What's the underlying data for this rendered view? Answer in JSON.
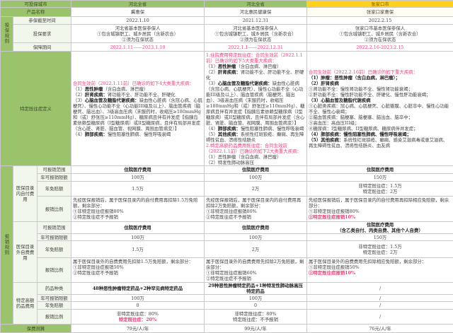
{
  "header": {
    "city_label": "可投保城市",
    "cities": [
      "河北全省",
      "河北全省",
      "张家口市"
    ]
  },
  "product": {
    "label": "产品名称",
    "names": [
      "冀惠保",
      "河北惠民健康保",
      "张家口家惠保"
    ]
  },
  "rules": {
    "group": "投保规则",
    "deadline": {
      "label": "参保截至时间",
      "values": [
        "2022.1.10",
        "2021.12.31",
        "2022.2.15"
      ]
    },
    "requirement": {
      "label": "投保要求",
      "values": [
        [
          "河北省基本医保参保人",
          "①包含城镇职工、城乡居民（含新农合）",
          "②须为在保状态"
        ],
        [
          "河北省基本医保参保人",
          "①包含城镇职工、城乡居民（含新农合）",
          "②须为在保状态"
        ],
        [
          "张家口市基本医保参保人",
          "①包含城镇职工、城乡居民（含新农合）",
          "②须为在保状态"
        ]
      ]
    },
    "period": {
      "label": "保障期间",
      "values": [
        "2022.1.11——2023.1.10",
        "2022.1.1——2022.12.31",
        "2022.2.16-2023.2.15"
      ]
    }
  },
  "preexisting": {
    "label": "特定既往症定义",
    "col1": {
      "intro": "合同生效前（2022.1.11前）已确诊的如下4大类重大疾病：",
      "items": [
        {
          "n": "（1）",
          "t": "恶性肿瘤",
          "d": "（含白血病、淋巴瘤）"
        },
        {
          "n": "（2）",
          "t": "肝肾疾病：",
          "d": "肾功能不全、肝功能不全、肝硬化"
        },
        {
          "n": "（3）",
          "t": "心脑血管及糖脂代谢疾病：",
          "d": "缺血性心脏病（含冠心病、心肌梗死）、慢性心功能不全（心功能III级及以上）、脑血管疾病（脑梗死、脑出血）、3级高血压病（末服药时，收缩压≥180mmHg和（或）舒张压≥110mmHg）、糖尿病且伴有并发症【指胰岛素依赖型糖尿病（I型糖尿病）或II型糖尿病，且伴有局部并发症（含心脏、肾脏、脑血管、视网膜、周围血管病变）】"
        },
        {
          "n": "（4）",
          "t": "肺部疾病：",
          "d": "慢性阻塞性肺病、慢性呼吸衰竭"
        }
      ]
    },
    "col2": {
      "intro1": "1.住院费用特定既往症：合同生效前（2022.1.1前）已确诊的如下5大类重大疾病：",
      "items1": [
        {
          "n": "（1）",
          "t": "恶性肿瘤",
          "d": "（含白血病、淋巴瘤）"
        },
        {
          "n": "（2）",
          "t": "肝肾疾病：",
          "d": "肾功能不全、肝功能不全、肝硬化"
        },
        {
          "n": "（3）",
          "t": "心脑血管及糖脂代谢疾病：",
          "d": "缺血性心脏病（含冠心病、心肌梗死）、慢性心功能不全（心功能III级及以上）、脑血管疾病（脑梗死、脑出血）、3级高血压病（末服药时，收缩压≥180mmHg和（或）舒张压≥110mmHg）、糖尿病且伴有并发症【指胰岛素依赖型糖尿病（I型糖尿病）或II型糖尿病，且伴有局部并发症（含心脏、肾脏、脑血管、视网膜、周围血管病变）】"
        },
        {
          "n": "（4）",
          "t": "肺部疾病：",
          "d": "慢性阻塞性肺病、慢性呼吸衰竭"
        },
        {
          "n": "（5）",
          "t": "其他疾病：",
          "d": "系统性红斑狼疮、癫痫、再生障碍性贫血、溃疡性结肠炎"
        }
      ],
      "intro2": "2.特定高额药品费用既往症：合同生效前（2022.1.1前）已确诊的如下2大类重大疾病：",
      "items2": [
        "（1）恶性肿瘤（含白血病、淋巴瘤）",
        "（2）特发性肺动脉高压"
      ]
    },
    "col3": {
      "intro": "合同生效前（2022.2.16前）已确诊的如下重大疾病：",
      "items": [
        {
          "t": "（1）肿瘤：恶性肿瘤（含白血病，淋巴瘤）；",
          "bold": true
        },
        {
          "t": "（2）肝肾疾病",
          "bold": true
        },
        {
          "t": "①肾功能不全：慢性肾功能不全、慢性肾功能衰竭；",
          "bold": false
        },
        {
          "t": "②肝功能不全：慢性肝功能不全、肝硬化、慢性肝功能衰竭；",
          "bold": false
        },
        {
          "t": "（3）心脑血管及糖脂代谢疾病",
          "bold": true
        },
        {
          "t": "①心脏类疾病：冠心病、心肌梗死、心脏瓣膜、心脏卒中、慢性心功能不全、慢性心衰竭；",
          "bold": false
        },
        {
          "t": "②脑血管疾病：脑梗塞、脑梗塞、脑出血、脑卒中；",
          "bold": false
        },
        {
          "t": "③高血压：高血压III级；",
          "bold": false
        },
        {
          "t": "④糖尿病：I型糖尿病、II型糖尿病、糖尿病伴并发症；",
          "bold": false
        },
        {
          "t": "（4）肺部疾病：慢性阻塞性肺病、慢性呼吸衰竭；",
          "bold": true
        },
        {
          "t": "（5）其他疾病：",
          "bold": true,
          "d": "系统性红斑狼疮、癫痫、感染艾滋病毒或患艾滋病、再生障碍性贫血、溃疡性结肠炎、血友病"
        }
      ]
    }
  },
  "claims": {
    "group": "报销规则",
    "inside": {
      "label": "医保目录内自付费用",
      "scope": {
        "label": "可报销范围",
        "values": [
          "住院医疗费用",
          "住院医疗费用",
          "住院医疗费用"
        ]
      },
      "limit": {
        "label": "年可报销限额",
        "values": [
          "100万",
          "100万",
          "150万"
        ]
      },
      "deductible": {
        "label": "年免赔额",
        "values": [
          [
            "1.5万"
          ],
          [
            "2万"
          ],
          [
            "非特定既往症：1.5万",
            "特定既往症：2万"
          ]
        ]
      },
      "ratio": {
        "label": "报销比例",
        "values": [
          {
            "lines": [
              "先经医保报销后，属于医保目录内的自付费用再扣除1.5万免赔额，剩余部分：",
              "①非特定既往症报销80%",
              "②特定既往症不予报销"
            ],
            "pink": ""
          },
          {
            "lines": [
              "先经医保报销后，属于医保目录内的自付费用再扣除2万免赔额，剩余部分：",
              "①非特定既往症报销80%",
              "②特定既往症不予报销"
            ],
            "pink": ""
          },
          {
            "lines": [
              "先经医保报销后，属于医保目录内的自付费用再扣除相应免赔额，剩余部分：",
              "①非特定既往症报销80%"
            ],
            "pink": "②特定既往症报销10%"
          }
        ]
      }
    },
    "outside": {
      "label": "医保目录外自费费用",
      "scope": {
        "label": "可报销范围",
        "values": [
          [
            "住院医疗费用"
          ],
          [
            "住院医疗费用"
          ],
          [
            "住院医疗费用",
            "（含乙类自付、丙类自费、其他个人自费）"
          ]
        ]
      },
      "limit": {
        "label": "年可报销限额",
        "values": [
          "100万",
          "100万",
          "150万"
        ]
      },
      "deductible": {
        "label": "年免赔额",
        "values": [
          [
            "1.5万"
          ],
          [
            "2万"
          ],
          [
            "非特定既往症：1.5万",
            "特定既往症：2万"
          ]
        ]
      },
      "ratio": {
        "label": "报销比例",
        "values": [
          {
            "lines": [
              "属于医保目录外的自费费用先扣除1.5万免赔额，剩余部分：",
              "①非特定既往症报销50%",
              "②特定既往症不予报销"
            ],
            "pink": ""
          },
          {
            "lines": [
              "属于医保目录外的自费费用先扣除2万免赔额，剩余部分：",
              "①非特定既往症报销60%",
              "②特定既往症不予报销"
            ],
            "pink": ""
          },
          {
            "lines": [
              "属于医保目录外的自费费用先扣除相应免赔额，剩余部分：",
              "①非特定既往症报销50%"
            ],
            "pink": "②特定既往症报销10%"
          }
        ]
      }
    },
    "drugs": {
      "label": "特定高额药品费用",
      "types": {
        "label": "药品种类",
        "values": [
          "48种恶性肿瘤特定药品+2种罕见病特定药品",
          "29种恶性肿瘤特定药品+1种特发性肺动脉高压特定药品",
          "/"
        ]
      },
      "limit": {
        "label": "年可报销限额",
        "values": [
          "100万",
          "100万",
          "/"
        ]
      },
      "deductible": {
        "label": "年免赔额",
        "values": [
          "0",
          "0",
          "/"
        ]
      },
      "ratio": {
        "label": "报销比例",
        "values": [
          {
            "lines": [
              "非特定既往症：80%"
            ],
            "pink": "特定既往症：20%"
          },
          {
            "lines": [
              "非特定既往症：80%",
              "特定既往症：不予报销"
            ],
            "pink": ""
          },
          {
            "lines": [
              "/"
            ],
            "pink": ""
          }
        ]
      }
    }
  },
  "premium": {
    "label": "保费测算",
    "values": [
      "79元/人/年",
      "99元/人/年",
      "76元/人/年"
    ]
  },
  "colors": {
    "header_green": "#9bc36b",
    "header_yellow": "#ffd21f",
    "highlight_pink": "#e8457a",
    "label_bg": "#f1f7ea"
  }
}
